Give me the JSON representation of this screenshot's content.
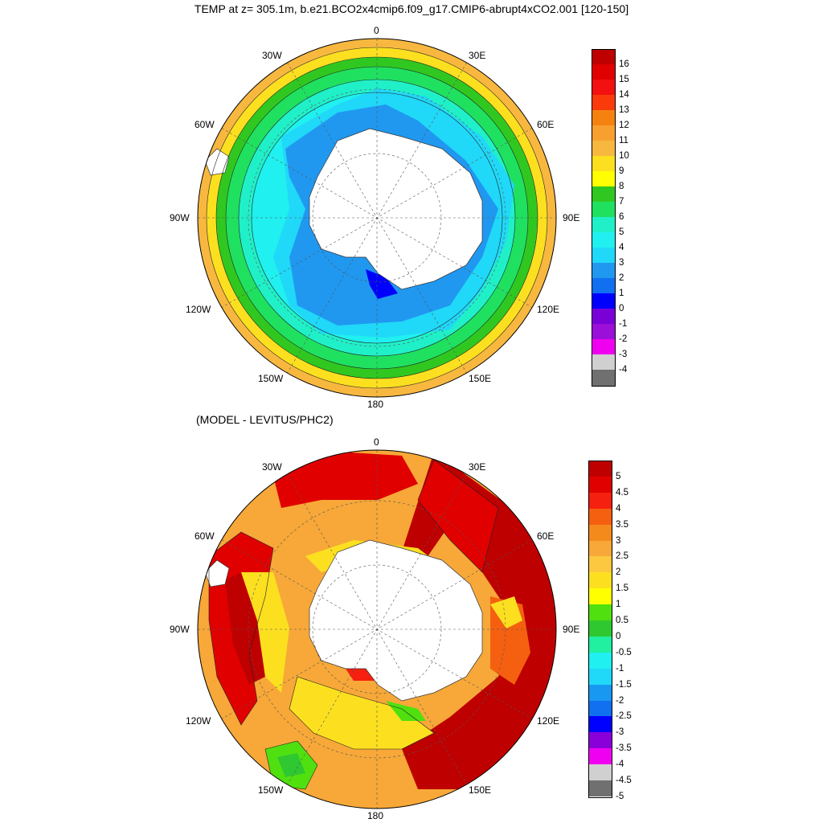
{
  "title": "TEMP at z= 305.1m, b.e21.BCO2x4cmip6.f09_g17.CMIP6-abrupt4xCO2.001 [120-150]",
  "subtitle": "(MODEL - LEVITUS/PHC2)",
  "map_labels": {
    "top": "0",
    "bottom": "180",
    "left": "90W",
    "right": "90E",
    "w30": "30W",
    "w60": "60W",
    "w120": "120W",
    "w150": "150W",
    "e30": "30E",
    "e60": "60E",
    "e120": "120E",
    "e150": "150E"
  },
  "colorbar_top": {
    "ticks": [
      "16",
      "15",
      "14",
      "13",
      "12",
      "11",
      "10",
      "9",
      "8",
      "7",
      "6",
      "5",
      "4",
      "3",
      "2",
      "1",
      "0",
      "-1",
      "-2",
      "-3",
      "-4"
    ],
    "colors": [
      "#be0000",
      "#e00000",
      "#f21010",
      "#fa3a0a",
      "#f5820f",
      "#f7a030",
      "#f8b840",
      "#fce020",
      "#ffff00",
      "#30c820",
      "#20e060",
      "#20f0c8",
      "#20f0f0",
      "#20d8f8",
      "#2098f0",
      "#1070f0",
      "#0000ff",
      "#7a00d8",
      "#9a10d8",
      "#f000f0",
      "#d0d0d0",
      "#707070"
    ]
  },
  "colorbar_bottom": {
    "ticks": [
      "5",
      "4.5",
      "4",
      "3.5",
      "3",
      "2.5",
      "2",
      "1.5",
      "1",
      "0.5",
      "0",
      "-0.5",
      "-1",
      "-1.5",
      "-2",
      "-2.5",
      "-3",
      "-3.5",
      "-4",
      "-4.5",
      "-5"
    ],
    "colors": [
      "#be0000",
      "#e00000",
      "#f52010",
      "#f56010",
      "#f58a1c",
      "#f7a838",
      "#fcc840",
      "#fce020",
      "#ffff00",
      "#50e010",
      "#30c830",
      "#20f0a0",
      "#20f0f0",
      "#20d8f8",
      "#1898f0",
      "#1070f0",
      "#0000ff",
      "#8a00d8",
      "#f000f0",
      "#d0d0d0",
      "#707070"
    ]
  }
}
